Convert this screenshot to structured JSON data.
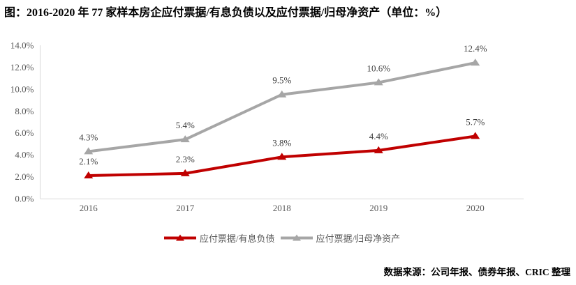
{
  "title": "图：2016-2020 年 77 家样本房企应付票据/有息负债以及应付票据/归母净资产（单位：%）",
  "source": "数据来源：公司年报、债券年报、CRIC 整理",
  "chart_data": {
    "type": "line",
    "categories": [
      "2016",
      "2017",
      "2018",
      "2019",
      "2020"
    ],
    "series": [
      {
        "name": "应付票据/有息负债",
        "values": [
          2.1,
          2.3,
          3.8,
          4.4,
          5.7
        ],
        "labels": [
          "2.1%",
          "2.3%",
          "3.8%",
          "4.4%",
          "5.7%"
        ],
        "color": "#c00000"
      },
      {
        "name": "应付票据/归母净资产",
        "values": [
          4.3,
          5.4,
          9.5,
          10.6,
          12.4
        ],
        "labels": [
          "4.3%",
          "5.4%",
          "9.5%",
          "10.6%",
          "12.4%"
        ],
        "color": "#a6a6a6"
      }
    ],
    "ylim": [
      0,
      14
    ],
    "ytick_labels": [
      "0.0%",
      "2.0%",
      "4.0%",
      "6.0%",
      "8.0%",
      "10.0%",
      "12.0%",
      "14.0%"
    ],
    "marker": "triangle",
    "grid": false,
    "legend_position": "bottom"
  },
  "style": {
    "axis_color": "#d9d9d9",
    "tick_text_color": "#595959",
    "data_label_color": "#404040",
    "legend_text_color": "#595959",
    "title_color": "#000000",
    "source_color": "#000000"
  }
}
